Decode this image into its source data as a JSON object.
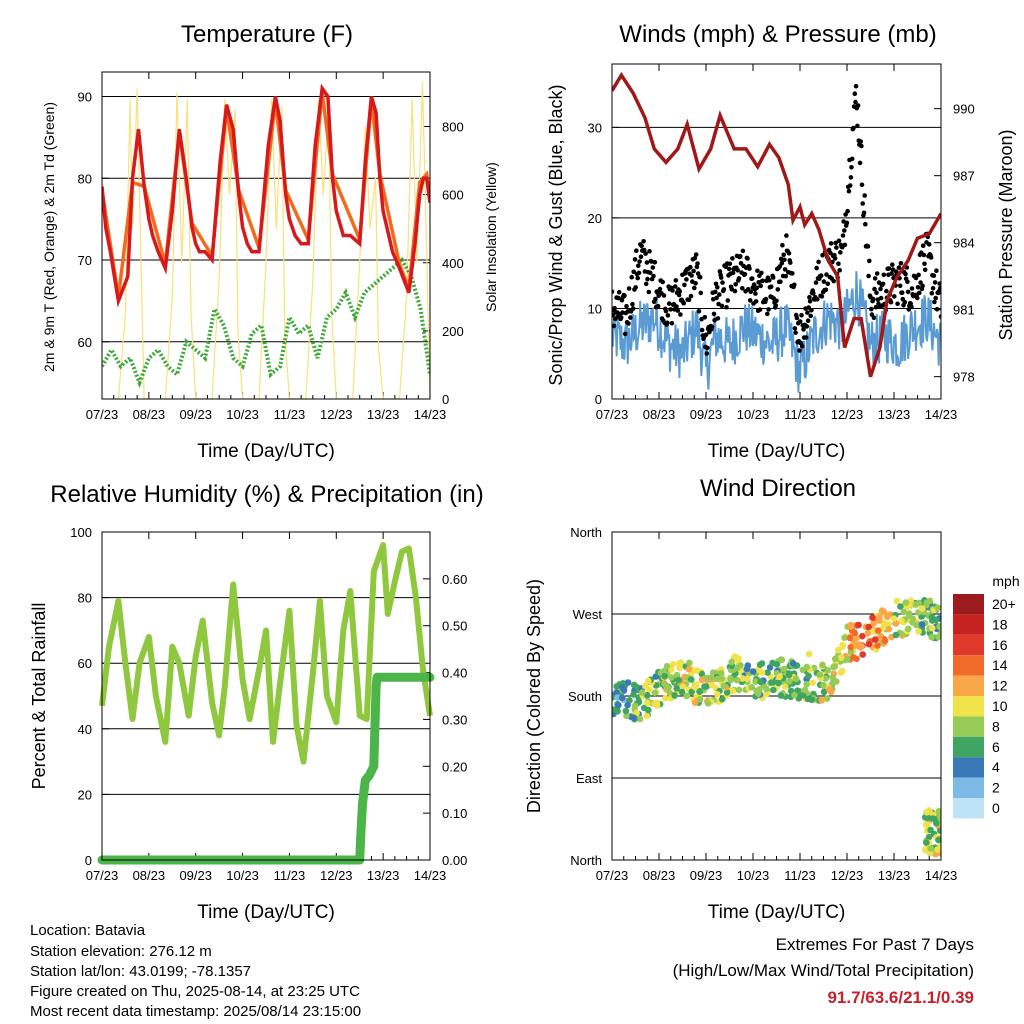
{
  "chart_data": [
    {
      "type": "line",
      "title": "Temperature (F)",
      "xlabel": "Time (Day/UTC)",
      "ylabel": "2m & 9m T (Red, Orange) & 2m Td (Green)",
      "y2label": "Solar Insolation (Yellow)",
      "x_ticks": [
        "07/23",
        "08/23",
        "09/23",
        "10/23",
        "11/23",
        "12/23",
        "13/23",
        "14/23"
      ],
      "ylim": [
        53,
        93
      ],
      "y_ticks": [
        60,
        70,
        80,
        90
      ],
      "y2lim": [
        0,
        960
      ],
      "y2_ticks": [
        0,
        200,
        400,
        600,
        800
      ],
      "grid": "horizontal",
      "series": [
        {
          "name": "2m T",
          "color": "#d7191c",
          "x": [
            0,
            0.08,
            0.18,
            0.35,
            0.55,
            0.65,
            0.78,
            0.9,
            1.0,
            1.08,
            1.2,
            1.35,
            1.5,
            1.65,
            1.8,
            1.92,
            2.0,
            2.08,
            2.2,
            2.35,
            2.52,
            2.66,
            2.8,
            2.92,
            3.0,
            3.1,
            3.2,
            3.35,
            3.55,
            3.7,
            3.8,
            3.92,
            4.0,
            4.12,
            4.25,
            4.4,
            4.55,
            4.7,
            4.82,
            4.92,
            5.0,
            5.15,
            5.3,
            5.5,
            5.62,
            5.75,
            5.85,
            5.93,
            6.0,
            6.08,
            6.2,
            6.35,
            6.55,
            6.68,
            6.78,
            6.86,
            6.93,
            7.0
          ],
          "values": [
            79,
            74,
            71,
            65,
            68,
            80,
            86,
            79,
            75,
            73,
            71,
            69,
            76,
            86,
            80,
            74,
            72,
            71,
            71,
            70,
            82,
            89,
            86,
            78,
            74,
            72,
            71,
            71,
            84,
            90,
            87,
            78,
            75,
            73,
            72,
            72,
            84,
            91,
            90,
            80,
            76,
            73,
            73,
            72,
            82,
            90,
            88,
            80,
            76,
            74,
            71,
            69,
            66,
            72,
            78,
            80,
            80,
            77
          ]
        },
        {
          "name": "9m T",
          "color": "#f26b1d",
          "x": [
            0,
            0.35,
            0.65,
            0.9,
            1.35,
            1.65,
            1.92,
            2.35,
            2.66,
            2.92,
            3.35,
            3.7,
            3.92,
            4.4,
            4.7,
            4.92,
            5.5,
            5.75,
            5.93,
            6.35,
            6.55,
            6.78,
            6.93,
            7.0
          ],
          "values": [
            78.5,
            65.5,
            79.5,
            79,
            69.5,
            85.5,
            74.5,
            70.5,
            88.5,
            78.5,
            71.5,
            89.5,
            78.5,
            72.5,
            90.5,
            80.5,
            72.5,
            89.5,
            80.5,
            69.5,
            66.5,
            79.5,
            80.5,
            77.5
          ]
        },
        {
          "name": "2m Td",
          "color": "#3aa935",
          "x": [
            0,
            0.2,
            0.4,
            0.6,
            0.8,
            1.0,
            1.2,
            1.4,
            1.6,
            1.8,
            2.0,
            2.2,
            2.4,
            2.6,
            2.8,
            3.0,
            3.2,
            3.4,
            3.6,
            3.8,
            4.0,
            4.2,
            4.4,
            4.6,
            4.8,
            5.0,
            5.2,
            5.4,
            5.6,
            5.8,
            6.0,
            6.2,
            6.4,
            6.6,
            6.8,
            7.0
          ],
          "values": [
            57,
            59,
            57,
            58,
            55,
            58,
            59,
            57,
            56,
            60,
            59,
            58,
            64,
            62,
            58,
            57,
            61,
            62,
            56,
            57,
            63,
            61,
            62,
            58,
            63,
            64,
            66,
            63,
            66,
            67,
            68,
            69,
            70,
            68,
            64,
            56
          ]
        },
        {
          "name": "Solar Insolation",
          "color": "#f7e17a",
          "x": [
            0,
            0.35,
            0.5,
            0.6,
            0.65,
            0.75,
            0.85,
            0.9,
            1.0,
            1.35,
            1.5,
            1.6,
            1.7,
            1.82,
            1.9,
            2.0,
            2.35,
            2.5,
            2.62,
            2.72,
            2.84,
            2.9,
            3.0,
            3.35,
            3.5,
            3.62,
            3.72,
            3.84,
            3.9,
            4.0,
            4.35,
            4.5,
            4.62,
            4.72,
            4.84,
            4.9,
            5.0,
            5.35,
            5.5,
            5.62,
            5.72,
            5.84,
            5.9,
            6.0,
            6.35,
            6.5,
            6.62,
            6.72,
            6.84,
            6.9,
            7.0
          ],
          "values": [
            0,
            0,
            250,
            880,
            500,
            910,
            300,
            0,
            0,
            0,
            300,
            900,
            400,
            880,
            250,
            0,
            0,
            350,
            880,
            600,
            850,
            200,
            0,
            0,
            400,
            880,
            500,
            860,
            200,
            0,
            0,
            350,
            880,
            600,
            860,
            250,
            0,
            0,
            400,
            800,
            500,
            650,
            150,
            0,
            0,
            300,
            880,
            400,
            930,
            600,
            0
          ]
        }
      ]
    },
    {
      "type": "line",
      "title": "Winds (mph) & Pressure (mb)",
      "xlabel": "Time (Day/UTC)",
      "ylabel": "Sonic/Prop Wind & Gust (Blue, Black)",
      "y2label": "Station Pressure (Maroon)",
      "x_ticks": [
        "07/23",
        "08/23",
        "09/23",
        "10/23",
        "11/23",
        "12/23",
        "13/23",
        "14/23"
      ],
      "ylim": [
        0,
        37
      ],
      "y_ticks": [
        0,
        10,
        20,
        30
      ],
      "y2lim": [
        977,
        992
      ],
      "y2_ticks": [
        978,
        981,
        984,
        987,
        990
      ],
      "grid": "horizontal",
      "series": [
        {
          "name": "Sonic/Prop Wind",
          "color": "#5a9bd4",
          "x": [
            0,
            0.3,
            0.6,
            0.9,
            1.2,
            1.5,
            1.8,
            2.0,
            2.2,
            2.5,
            2.8,
            3.1,
            3.4,
            3.7,
            4.0,
            4.3,
            4.6,
            4.9,
            5.2,
            5.5,
            5.8,
            6.1,
            6.4,
            6.7,
            7.0
          ],
          "values": [
            7,
            6,
            8,
            9,
            6,
            5,
            8,
            3,
            7,
            6,
            8,
            7,
            6,
            8,
            3,
            7,
            9,
            8,
            12,
            6,
            7,
            6,
            8,
            9,
            6
          ]
        },
        {
          "name": "Gust",
          "color": "#000000",
          "x": [
            0,
            0.3,
            0.6,
            0.9,
            1.2,
            1.5,
            1.8,
            2.0,
            2.2,
            2.5,
            2.8,
            3.1,
            3.4,
            3.7,
            4.0,
            4.3,
            4.6,
            4.9,
            5.2,
            5.5,
            5.8,
            6.1,
            6.4,
            6.7,
            7.0
          ],
          "values": [
            10,
            9,
            16,
            13,
            10,
            12,
            14,
            6,
            11,
            13,
            14,
            12,
            11,
            16,
            7,
            12,
            15,
            16,
            34,
            11,
            12,
            13,
            12,
            16,
            10
          ]
        },
        {
          "name": "Station Pressure",
          "color": "#a01818",
          "x": [
            0,
            0.2,
            0.45,
            0.7,
            0.9,
            1.15,
            1.4,
            1.6,
            1.85,
            2.1,
            2.3,
            2.6,
            2.85,
            3.1,
            3.35,
            3.55,
            3.75,
            3.85,
            4.0,
            4.1,
            4.25,
            4.4,
            4.6,
            4.8,
            4.95,
            5.15,
            5.3,
            5.5,
            5.7,
            5.85,
            6.05,
            6.3,
            6.5,
            6.75,
            7.0
          ],
          "values": [
            990.8,
            991.5,
            990.7,
            989.6,
            988.2,
            987.6,
            988.2,
            989.3,
            987.3,
            988.2,
            989.7,
            988.2,
            988.2,
            987.4,
            988.4,
            987.8,
            986.6,
            985.0,
            985.6,
            984.8,
            985.3,
            984.6,
            983.2,
            982.5,
            979.3,
            980.6,
            980.6,
            978.0,
            979.3,
            981.4,
            982.4,
            983.2,
            984.2,
            984.4,
            985.3
          ]
        }
      ]
    },
    {
      "type": "line",
      "title": "Relative Humidity (%) & Precipitation (in)",
      "xlabel": "Time (Day/UTC)",
      "ylabel": "Percent & Total Rainfall",
      "x_ticks": [
        "07/23",
        "08/23",
        "09/23",
        "10/23",
        "11/23",
        "12/23",
        "13/23",
        "14/23"
      ],
      "ylim": [
        0,
        100
      ],
      "y_ticks": [
        0,
        20,
        40,
        60,
        80,
        100
      ],
      "y2lim": [
        0,
        0.7
      ],
      "y2_ticks": [
        "0.00",
        "0.10",
        "0.20",
        "0.30",
        "0.40",
        "0.50",
        "0.60"
      ],
      "grid": "horizontal",
      "series": [
        {
          "name": "Relative Humidity",
          "color": "#8fc73e",
          "x": [
            0,
            0.15,
            0.35,
            0.5,
            0.65,
            0.8,
            1.0,
            1.15,
            1.35,
            1.5,
            1.65,
            1.85,
            2.0,
            2.15,
            2.35,
            2.5,
            2.62,
            2.8,
            3.0,
            3.15,
            3.35,
            3.5,
            3.65,
            3.8,
            4.0,
            4.15,
            4.3,
            4.5,
            4.65,
            4.8,
            5.0,
            5.15,
            5.3,
            5.5,
            5.65,
            5.8,
            6.0,
            6.1,
            6.25,
            6.4,
            6.55,
            6.7,
            6.85,
            7.0
          ],
          "values": [
            47,
            65,
            79,
            60,
            43,
            60,
            68,
            50,
            36,
            65,
            60,
            44,
            62,
            73,
            48,
            38,
            53,
            84,
            55,
            43,
            58,
            70,
            36,
            54,
            76,
            41,
            30,
            57,
            79,
            50,
            42,
            70,
            82,
            44,
            43,
            88,
            96,
            75,
            85,
            94,
            95,
            80,
            58,
            44
          ]
        },
        {
          "name": "Total Rainfall",
          "color": "#4cb54a",
          "x": [
            0,
            5.5,
            5.52,
            5.56,
            5.62,
            5.7,
            5.8,
            5.85,
            5.87,
            7.0
          ],
          "values": [
            0,
            0,
            0.05,
            0.12,
            0.17,
            0.18,
            0.2,
            0.37,
            0.39,
            0.39
          ]
        }
      ]
    },
    {
      "type": "scatter",
      "title": "Wind Direction",
      "xlabel": "Time (Day/UTC)",
      "ylabel": "Direction (Colored By Speed)",
      "x_ticks": [
        "07/23",
        "08/23",
        "09/23",
        "10/23",
        "11/23",
        "12/23",
        "13/23",
        "14/23"
      ],
      "y_ticks": [
        "North",
        "East",
        "South",
        "West",
        "North"
      ],
      "ylim": [
        0,
        360
      ],
      "grid": "horizontal",
      "legend_title": "mph",
      "legend": "right",
      "color_scale": [
        {
          "label": "20+",
          "color": "#9b1b1e"
        },
        {
          "label": "18",
          "color": "#c4231f"
        },
        {
          "label": "16",
          "color": "#e0382a"
        },
        {
          "label": "14",
          "color": "#f36b2a"
        },
        {
          "label": "12",
          "color": "#f9a748"
        },
        {
          "label": "10",
          "color": "#f0e24b"
        },
        {
          "label": "8",
          "color": "#96cc56"
        },
        {
          "label": "6",
          "color": "#3fa560"
        },
        {
          "label": "4",
          "color": "#3979b8"
        },
        {
          "label": "2",
          "color": "#7dbae6"
        },
        {
          "label": "0",
          "color": "#bde3f7"
        }
      ]
    }
  ],
  "info": {
    "location": "Location: Batavia",
    "elevation": "Station elevation: 276.12 m",
    "latlon": "Station lat/lon: 43.0199; -78.1357",
    "created": "Figure created on Thu, 2025-08-14, at 23:25 UTC",
    "recent": "Most recent data timestamp: 2025/08/14 23:15:00"
  },
  "extremes": {
    "title": "Extremes For Past 7 Days",
    "subtitle": "(High/Low/Max Wind/Total Precipitation)",
    "values": "91.7/63.6/21.1/0.39",
    "values_color": "#c8202a"
  }
}
